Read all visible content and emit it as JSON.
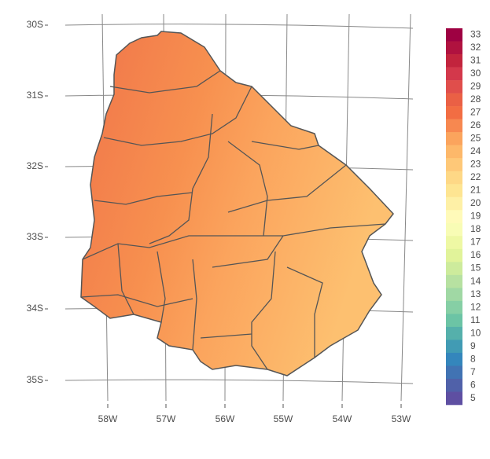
{
  "map": {
    "lat_labels": [
      "30S",
      "31S",
      "32S",
      "33S",
      "34S",
      "35S"
    ],
    "lon_labels": [
      "58W",
      "57W",
      "56W",
      "55W",
      "54W",
      "53W"
    ],
    "legend": {
      "labels": [
        33,
        32,
        31,
        30,
        29,
        28,
        27,
        26,
        25,
        24,
        23,
        22,
        21,
        20,
        19,
        18,
        17,
        16,
        15,
        14,
        13,
        12,
        11,
        10,
        9,
        8,
        7,
        6,
        5
      ],
      "colors": [
        "#9e0142",
        "#b0123f",
        "#c2243d",
        "#d3384b",
        "#e04e4b",
        "#ea6045",
        "#f26d43",
        "#f78850",
        "#fba45d",
        "#fdb86a",
        "#fec878",
        "#fed886",
        "#fee592",
        "#fef0a6",
        "#fffab9",
        "#f8fcb5",
        "#eef8a4",
        "#e1f39a",
        "#cdeb9c",
        "#b7e1a1",
        "#a0d8a4",
        "#86cfa5",
        "#6cc4a5",
        "#55b0ab",
        "#419bb4",
        "#3486bc",
        "#4173b3",
        "#5061a9",
        "#5e4fa2"
      ]
    }
  }
}
